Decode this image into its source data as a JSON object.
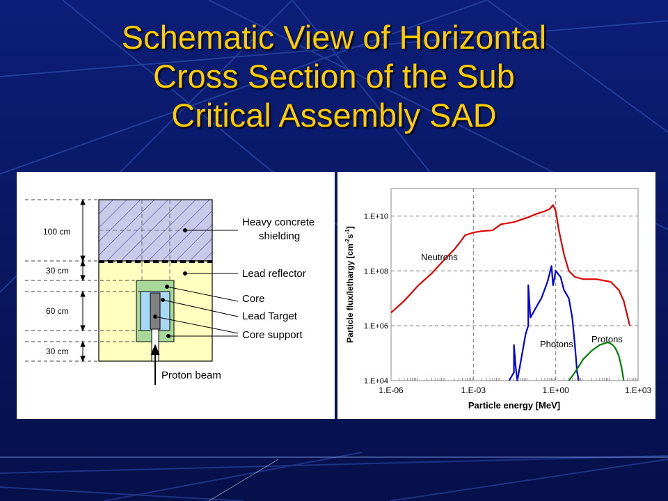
{
  "title": {
    "lines": [
      "Schematic View of Horizontal",
      "Cross Section of the Sub",
      "Critical Assembly SAD"
    ]
  },
  "colors": {
    "background": "#0a1a66",
    "title": "#ffcc00",
    "shield_fill": "#c9c9ea",
    "reflector_fill": "#ffffc0",
    "core_fill": "#a8d8f4",
    "support_fill": "#a8d99a",
    "target_fill": "#808080",
    "neutrons": "#e00000",
    "photons": "#0000e0",
    "protons": "#008000"
  },
  "schematic": {
    "dimensions": [
      "100 cm",
      "30 cm",
      "60 cm",
      "30 cm"
    ],
    "labels": {
      "shielding_line1": "Heavy concrete",
      "shielding_line2": "shielding",
      "reflector": "Lead reflector",
      "core": "Core",
      "target": "Lead Target",
      "support": "Core support",
      "beam": "Proton beam"
    }
  },
  "chart_data": {
    "type": "line",
    "xscale": "log",
    "yscale": "log",
    "xlim": [
      1e-06,
      1000
    ],
    "ylim": [
      10000,
      100000000000.0
    ],
    "xticks": [
      "1.E-06",
      "1.E-03",
      "1.E+00",
      "1.E+03"
    ],
    "yticks": [
      "1.E+04",
      "1.E+06",
      "1.E+08",
      "1.E+10"
    ],
    "xlabel": "Particle energy [MeV]",
    "ylabel_parts": [
      "Particle flux/lethargy [cm",
      "-2",
      "s",
      "-1",
      "]"
    ],
    "grid": "dashed",
    "series": [
      {
        "name": "Neutrons",
        "color": "#e00000",
        "x": [
          1e-06,
          3e-06,
          1e-05,
          3e-05,
          0.0001,
          0.0002,
          0.0003,
          0.0005,
          0.001,
          0.002,
          0.005,
          0.01,
          0.03,
          0.1,
          0.2,
          0.4,
          0.6,
          0.8,
          1.0,
          1.3,
          2,
          3,
          5,
          10,
          30,
          100,
          200,
          300,
          500
        ],
        "y": [
          3000000.0,
          8000000.0,
          30000000.0,
          80000000.0,
          300000000.0,
          600000000.0,
          1000000000.0,
          2000000000.0,
          2500000000.0,
          2800000000.0,
          3000000000.0,
          5000000000.0,
          6000000000.0,
          9000000000.0,
          12000000000.0,
          15000000000.0,
          18000000000.0,
          25000000000.0,
          15000000000.0,
          3000000000.0,
          400000000.0,
          100000000.0,
          60000000.0,
          50000000.0,
          50000000.0,
          40000000.0,
          20000000.0,
          8000000.0,
          1000000.0
        ]
      },
      {
        "name": "Photons",
        "color": "#0000e0",
        "x": [
          0.02,
          0.03,
          0.03,
          0.035,
          0.04,
          0.06,
          0.08,
          0.1,
          0.1,
          0.12,
          0.2,
          0.3,
          0.5,
          0.6,
          0.7,
          0.8,
          1.0,
          1.5,
          2,
          3,
          4,
          5,
          6,
          7
        ],
        "y": [
          10000,
          20000,
          200000.0,
          30000,
          10000,
          100000.0,
          500000.0,
          1000000.0,
          30000000.0,
          2000000.0,
          5000000.0,
          10000000.0,
          40000000.0,
          80000000.0,
          150000000.0,
          30000000.0,
          100000000.0,
          60000000.0,
          20000000.0,
          10000000.0,
          2000000.0,
          200000.0,
          20000,
          10000
        ]
      },
      {
        "name": "Protons",
        "color": "#008000",
        "x": [
          3,
          5,
          10,
          20,
          40,
          80,
          120,
          150,
          200,
          250,
          300
        ],
        "y": [
          10000,
          20000,
          60000,
          120000.0,
          200000.0,
          250000.0,
          200000.0,
          150000.0,
          80000,
          30000,
          10000
        ]
      }
    ]
  }
}
